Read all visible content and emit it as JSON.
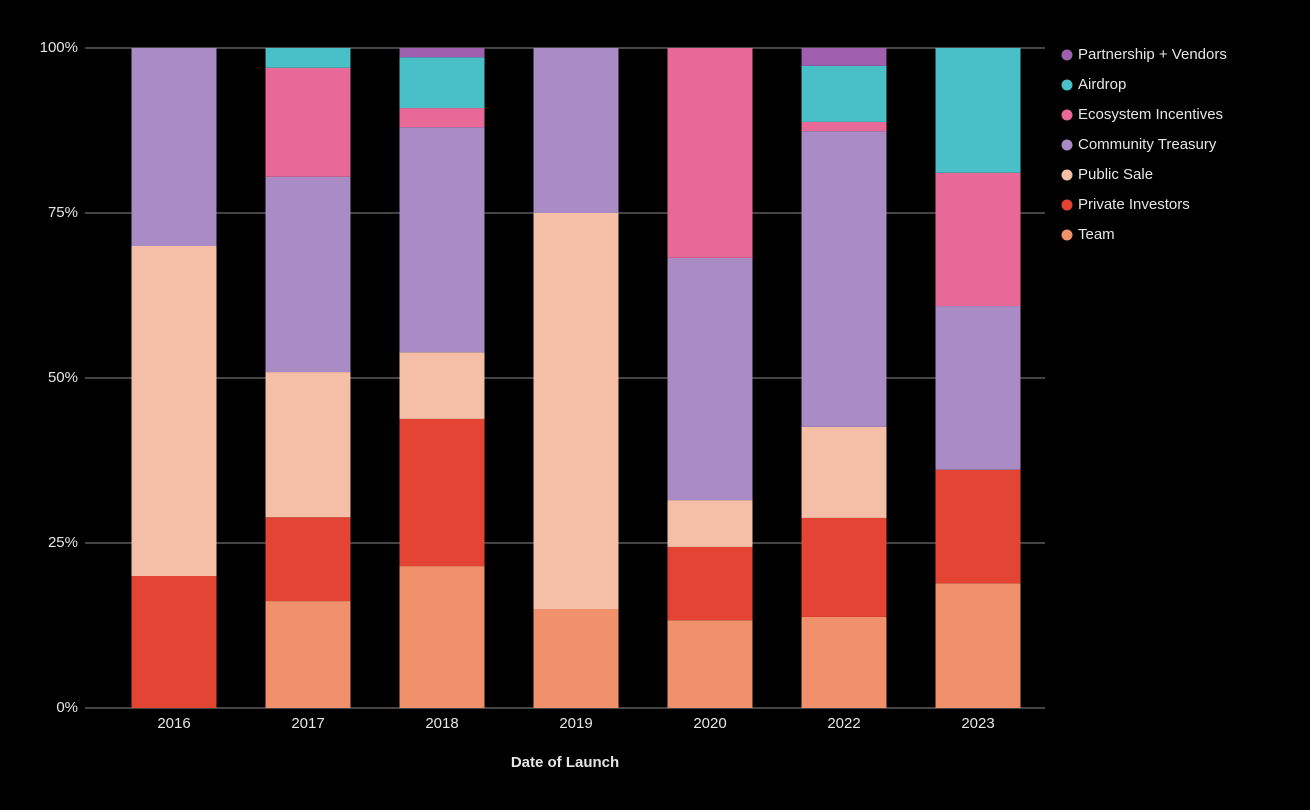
{
  "chart_data": {
    "type": "stacked_bar",
    "x_label": "Date of Launch",
    "categories": [
      "2016",
      "2017",
      "2018",
      "2019",
      "2020",
      "2022",
      "2023"
    ],
    "series": [
      {
        "name": "Team",
        "color": "#f0916b",
        "values": [
          0,
          16.2,
          21.5,
          15,
          13.3,
          13.8,
          18.9
        ]
      },
      {
        "name": "Private Investors",
        "color": "#e44433",
        "values": [
          20,
          12.7,
          22.3,
          0,
          11.1,
          15,
          17.2
        ]
      },
      {
        "name": "Public Sale",
        "color": "#f4bea7",
        "values": [
          50,
          22,
          10.1,
          60,
          7.1,
          13.8,
          0
        ]
      },
      {
        "name": "Community Treasury",
        "color": "#a98cc6",
        "values": [
          30,
          29.6,
          34.1,
          25,
          36.7,
          44.8,
          24.8
        ]
      },
      {
        "name": "Ecosystem Incentives",
        "color": "#e86897",
        "values": [
          0,
          16.5,
          2.9,
          0,
          31.8,
          1.4,
          20.2
        ]
      },
      {
        "name": "Airdrop",
        "color": "#49bfc8",
        "values": [
          0,
          3,
          7.7,
          0,
          0,
          8.5,
          18.9
        ]
      },
      {
        "name": "Partnership + Vendors",
        "color": "#9d5fae",
        "values": [
          0,
          0,
          1.4,
          0,
          0,
          2.7,
          0
        ]
      }
    ],
    "ylim": [
      0,
      100
    ],
    "yticks": [
      {
        "value": 0,
        "label": "0%"
      },
      {
        "value": 25,
        "label": "25%"
      },
      {
        "value": 50,
        "label": "50%"
      },
      {
        "value": 75,
        "label": "75%"
      },
      {
        "value": 100,
        "label": "100%"
      }
    ],
    "grid": true,
    "legend": "right"
  }
}
